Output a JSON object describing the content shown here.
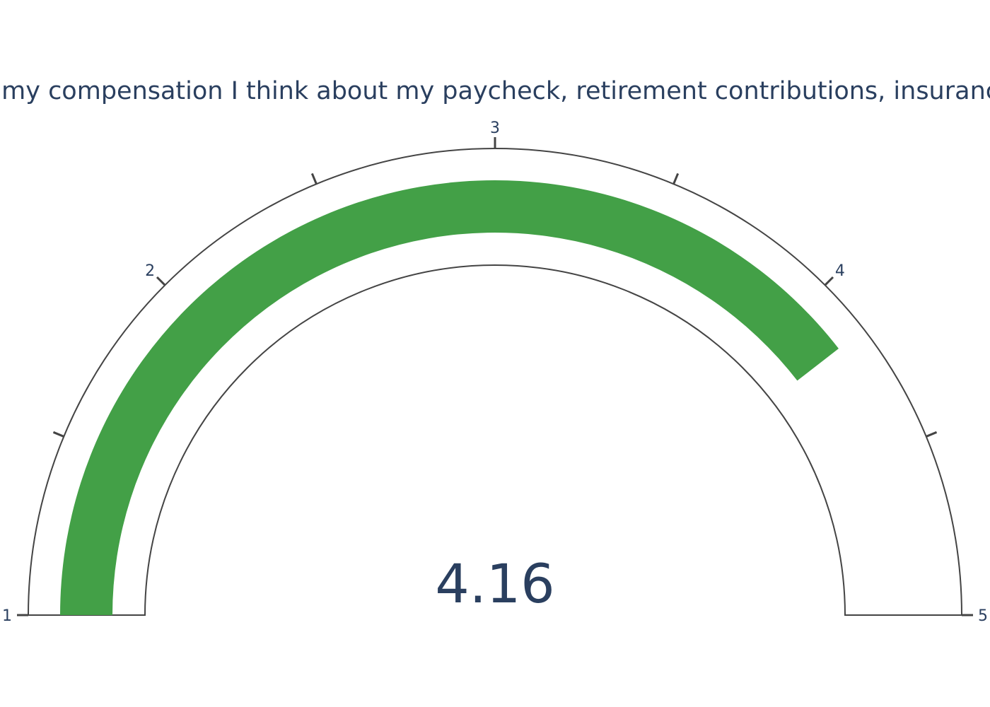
{
  "chart_data": {
    "type": "gauge",
    "title": "When I think of my compensation I think about my paycheck, retirement contributions, insurance benefits, etc.",
    "value": 4.16,
    "value_label": "4.16",
    "range": [
      1,
      5
    ],
    "tick_labels": [
      "1",
      "2",
      "3",
      "4",
      "5"
    ],
    "tick_values": [
      1,
      1.5,
      2,
      2.5,
      3,
      3.5,
      4,
      4.5,
      5
    ],
    "bar_color": "#43a047",
    "outline_color": "#444444",
    "text_color": "#2a3f5f"
  }
}
